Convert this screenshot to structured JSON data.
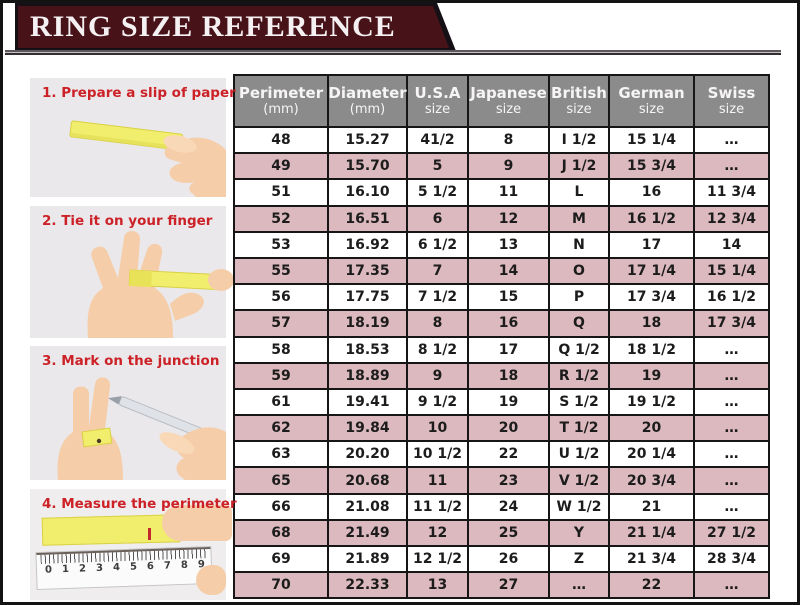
{
  "banner": {
    "title": "RING SIZE REFERENCE"
  },
  "steps": [
    {
      "label": "1. Prepare a slip of paper",
      "illustration": "hand-holding-yellow-paper-slip"
    },
    {
      "label": "2. Tie it on your finger",
      "illustration": "paper-slip-wrapped-around-finger"
    },
    {
      "label": "3. Mark on the junction",
      "illustration": "pen-marking-paper-on-finger"
    },
    {
      "label": "4. Measure the perimeter",
      "illustration": "paper-slip-measured-on-ruler"
    }
  ],
  "ruler": {
    "numbers": [
      "0",
      "1",
      "2",
      "3",
      "4",
      "5",
      "6",
      "7",
      "8",
      "9"
    ]
  },
  "chart_data": {
    "type": "table",
    "title": "RING SIZE REFERENCE",
    "columns": [
      {
        "line1": "Perimeter",
        "line2": "(mm)"
      },
      {
        "line1": "Diameter",
        "line2": "(mm)"
      },
      {
        "line1": "U.S.A",
        "line2": "size"
      },
      {
        "line1": "Japanese",
        "line2": "size"
      },
      {
        "line1": "British",
        "line2": "size"
      },
      {
        "line1": "German",
        "line2": "size"
      },
      {
        "line1": "Swiss",
        "line2": "size"
      }
    ],
    "rows": [
      [
        "48",
        "15.27",
        "41/2",
        "8",
        "I 1/2",
        "15 1/4",
        "…"
      ],
      [
        "49",
        "15.70",
        "5",
        "9",
        "J 1/2",
        "15 3/4",
        "…"
      ],
      [
        "51",
        "16.10",
        "5 1/2",
        "11",
        "L",
        "16",
        "11 3/4"
      ],
      [
        "52",
        "16.51",
        "6",
        "12",
        "M",
        "16 1/2",
        "12 3/4"
      ],
      [
        "53",
        "16.92",
        "6 1/2",
        "13",
        "N",
        "17",
        "14"
      ],
      [
        "55",
        "17.35",
        "7",
        "14",
        "O",
        "17 1/4",
        "15 1/4"
      ],
      [
        "56",
        "17.75",
        "7 1/2",
        "15",
        "P",
        "17 3/4",
        "16 1/2"
      ],
      [
        "57",
        "18.19",
        "8",
        "16",
        "Q",
        "18",
        "17 3/4"
      ],
      [
        "58",
        "18.53",
        "8 1/2",
        "17",
        "Q 1/2",
        "18 1/2",
        "…"
      ],
      [
        "59",
        "18.89",
        "9",
        "18",
        "R 1/2",
        "19",
        "…"
      ],
      [
        "61",
        "19.41",
        "9 1/2",
        "19",
        "S 1/2",
        "19 1/2",
        "…"
      ],
      [
        "62",
        "19.84",
        "10",
        "20",
        "T 1/2",
        "20",
        "…"
      ],
      [
        "63",
        "20.20",
        "10 1/2",
        "22",
        "U 1/2",
        "20 1/4",
        "…"
      ],
      [
        "65",
        "20.68",
        "11",
        "23",
        "V 1/2",
        "20 3/4",
        "…"
      ],
      [
        "66",
        "21.08",
        "11 1/2",
        "24",
        "W 1/2",
        "21",
        "…"
      ],
      [
        "68",
        "21.49",
        "12",
        "25",
        "Y",
        "21 1/4",
        "27 1/2"
      ],
      [
        "69",
        "21.89",
        "12 1/2",
        "26",
        "Z",
        "21 3/4",
        "28 3/4"
      ],
      [
        "70",
        "22.33",
        "13",
        "27",
        "…",
        "22",
        "…"
      ]
    ]
  },
  "colors": {
    "banner_bg": "#471319",
    "banner_border": "#151015",
    "table_header_bg": "#8b8b8b",
    "row_pink": "#dcb9be",
    "row_white": "#ffffff",
    "step_label_red": "#cc2127",
    "panel_bg": "#eae8ea",
    "paper_yellow": "#f2ee6d",
    "skin": "#f6cda9"
  }
}
